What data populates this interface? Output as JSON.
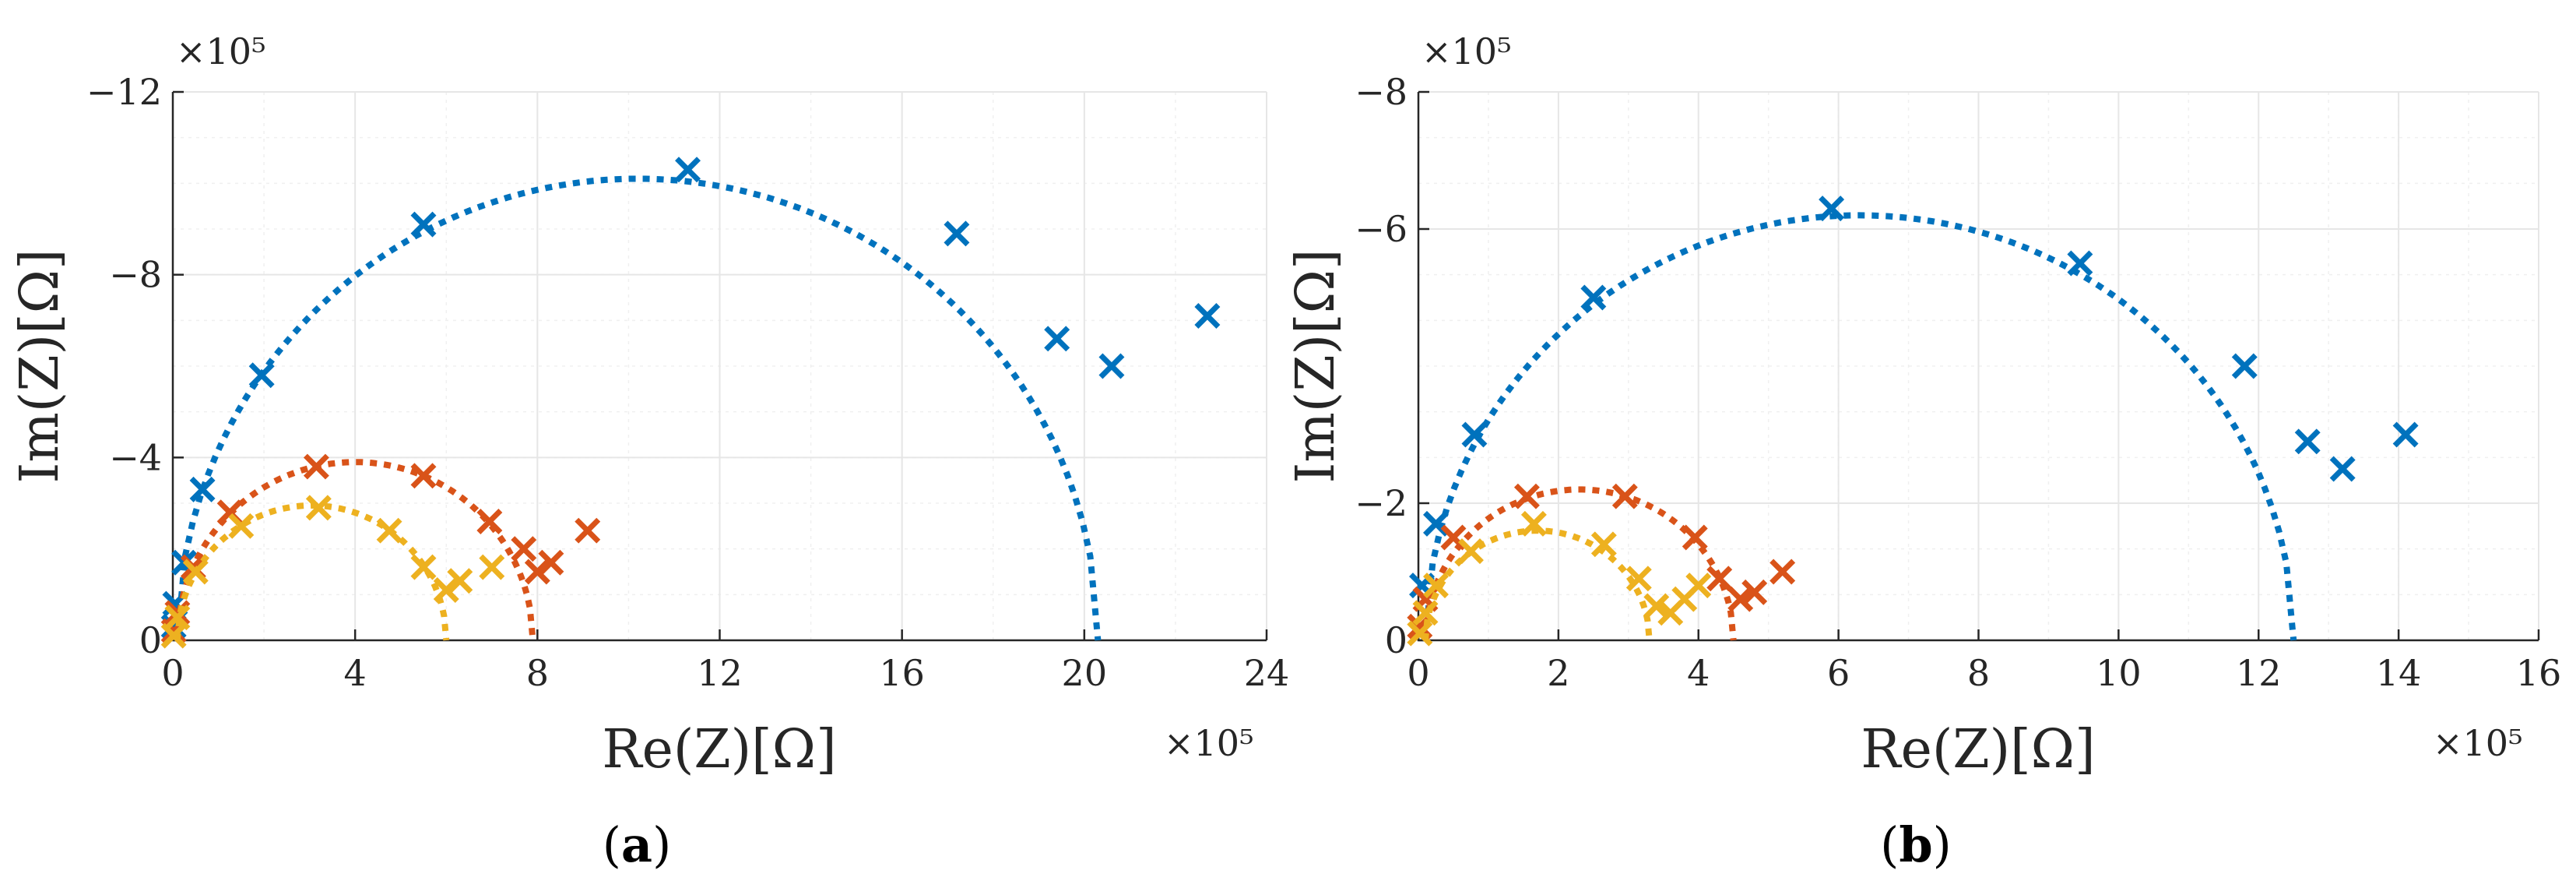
{
  "chart_data": [
    {
      "type": "scatter",
      "panel_label": "a",
      "xlabel": "Re(Z)[Ω]",
      "ylabel": "Im(Z)[Ω]",
      "x_exponent_label": "×10⁵",
      "y_exponent_label": "×10⁵",
      "xlim": [
        0,
        24
      ],
      "ylim": [
        0,
        -12
      ],
      "xticks": [
        0,
        4,
        8,
        12,
        16,
        20,
        24
      ],
      "yticks": [
        0,
        -4,
        -8,
        -12
      ],
      "grid": true,
      "series": [
        {
          "color": "#0072BD",
          "points": [
            {
              "x": 0.02,
              "y": -0.3
            },
            {
              "x": 0.05,
              "y": -0.8
            },
            {
              "x": 0.25,
              "y": -1.7
            },
            {
              "x": 0.65,
              "y": -3.3
            },
            {
              "x": 1.95,
              "y": -5.8
            },
            {
              "x": 5.5,
              "y": -9.1
            },
            {
              "x": 11.3,
              "y": -10.3
            },
            {
              "x": 17.2,
              "y": -8.9
            },
            {
              "x": 19.4,
              "y": -6.6
            },
            {
              "x": 20.6,
              "y": -6.0
            },
            {
              "x": 22.7,
              "y": -7.1
            }
          ],
          "fit": {
            "center": 10.2,
            "radius": 10.1,
            "start": 0.1,
            "end": 20.3
          }
        },
        {
          "color": "#D95319",
          "points": [
            {
              "x": 0.02,
              "y": -0.2
            },
            {
              "x": 0.1,
              "y": -0.6
            },
            {
              "x": 0.45,
              "y": -1.6
            },
            {
              "x": 1.25,
              "y": -2.8
            },
            {
              "x": 3.15,
              "y": -3.8
            },
            {
              "x": 5.5,
              "y": -3.6
            },
            {
              "x": 6.95,
              "y": -2.6
            },
            {
              "x": 7.7,
              "y": -2.0
            },
            {
              "x": 8.0,
              "y": -1.5
            },
            {
              "x": 8.3,
              "y": -1.7
            },
            {
              "x": 9.1,
              "y": -2.4
            }
          ],
          "fit": {
            "center": 4.0,
            "radius": 3.9,
            "start": 0.1,
            "end": 7.9
          }
        },
        {
          "color": "#EDB120",
          "points": [
            {
              "x": 0.02,
              "y": -0.1
            },
            {
              "x": 0.1,
              "y": -0.5
            },
            {
              "x": 0.5,
              "y": -1.5
            },
            {
              "x": 1.5,
              "y": -2.5
            },
            {
              "x": 3.2,
              "y": -2.9
            },
            {
              "x": 4.75,
              "y": -2.4
            },
            {
              "x": 5.5,
              "y": -1.6
            },
            {
              "x": 6.0,
              "y": -1.1
            },
            {
              "x": 6.3,
              "y": -1.3
            },
            {
              "x": 7.0,
              "y": -1.6
            }
          ],
          "fit": {
            "center": 3.05,
            "radius": 2.95,
            "start": 0.1,
            "end": 6.0
          }
        }
      ]
    },
    {
      "type": "scatter",
      "panel_label": "b",
      "xlabel": "Re(Z)[Ω]",
      "ylabel": "Im(Z)[Ω]",
      "x_exponent_label": "×10⁵",
      "y_exponent_label": "×10⁵",
      "xlim": [
        0,
        16
      ],
      "ylim": [
        0,
        -8
      ],
      "xticks": [
        0,
        2,
        4,
        6,
        8,
        10,
        12,
        14,
        16
      ],
      "yticks": [
        0,
        -2,
        -6,
        -8
      ],
      "grid": true,
      "series": [
        {
          "color": "#0072BD",
          "points": [
            {
              "x": 0.05,
              "y": -0.8
            },
            {
              "x": 0.25,
              "y": -1.7
            },
            {
              "x": 0.8,
              "y": -3.0
            },
            {
              "x": 2.5,
              "y": -5.0
            },
            {
              "x": 5.9,
              "y": -6.3
            },
            {
              "x": 9.45,
              "y": -5.5
            },
            {
              "x": 11.8,
              "y": -4.0
            },
            {
              "x": 12.7,
              "y": -2.9
            },
            {
              "x": 13.2,
              "y": -2.5
            },
            {
              "x": 14.1,
              "y": -3.0
            }
          ],
          "fit": {
            "center": 6.3,
            "radius": 6.2,
            "start": 0.1,
            "end": 12.5
          }
        },
        {
          "color": "#D95319",
          "points": [
            {
              "x": 0.02,
              "y": -0.2
            },
            {
              "x": 0.1,
              "y": -0.6
            },
            {
              "x": 0.5,
              "y": -1.5
            },
            {
              "x": 1.55,
              "y": -2.1
            },
            {
              "x": 2.95,
              "y": -2.1
            },
            {
              "x": 3.95,
              "y": -1.5
            },
            {
              "x": 4.3,
              "y": -0.9
            },
            {
              "x": 4.6,
              "y": -0.6
            },
            {
              "x": 4.8,
              "y": -0.7
            },
            {
              "x": 5.2,
              "y": -1.0
            }
          ],
          "fit": {
            "center": 2.3,
            "radius": 2.2,
            "start": 0.1,
            "end": 4.5
          }
        },
        {
          "color": "#EDB120",
          "points": [
            {
              "x": 0.02,
              "y": -0.1
            },
            {
              "x": 0.1,
              "y": -0.4
            },
            {
              "x": 0.25,
              "y": -0.8
            },
            {
              "x": 0.75,
              "y": -1.3
            },
            {
              "x": 1.65,
              "y": -1.7
            },
            {
              "x": 2.65,
              "y": -1.4
            },
            {
              "x": 3.15,
              "y": -0.9
            },
            {
              "x": 3.4,
              "y": -0.5
            },
            {
              "x": 3.6,
              "y": -0.4
            },
            {
              "x": 3.8,
              "y": -0.6
            },
            {
              "x": 4.0,
              "y": -0.8
            }
          ],
          "fit": {
            "center": 1.7,
            "radius": 1.6,
            "start": 0.1,
            "end": 3.3
          }
        }
      ]
    }
  ]
}
